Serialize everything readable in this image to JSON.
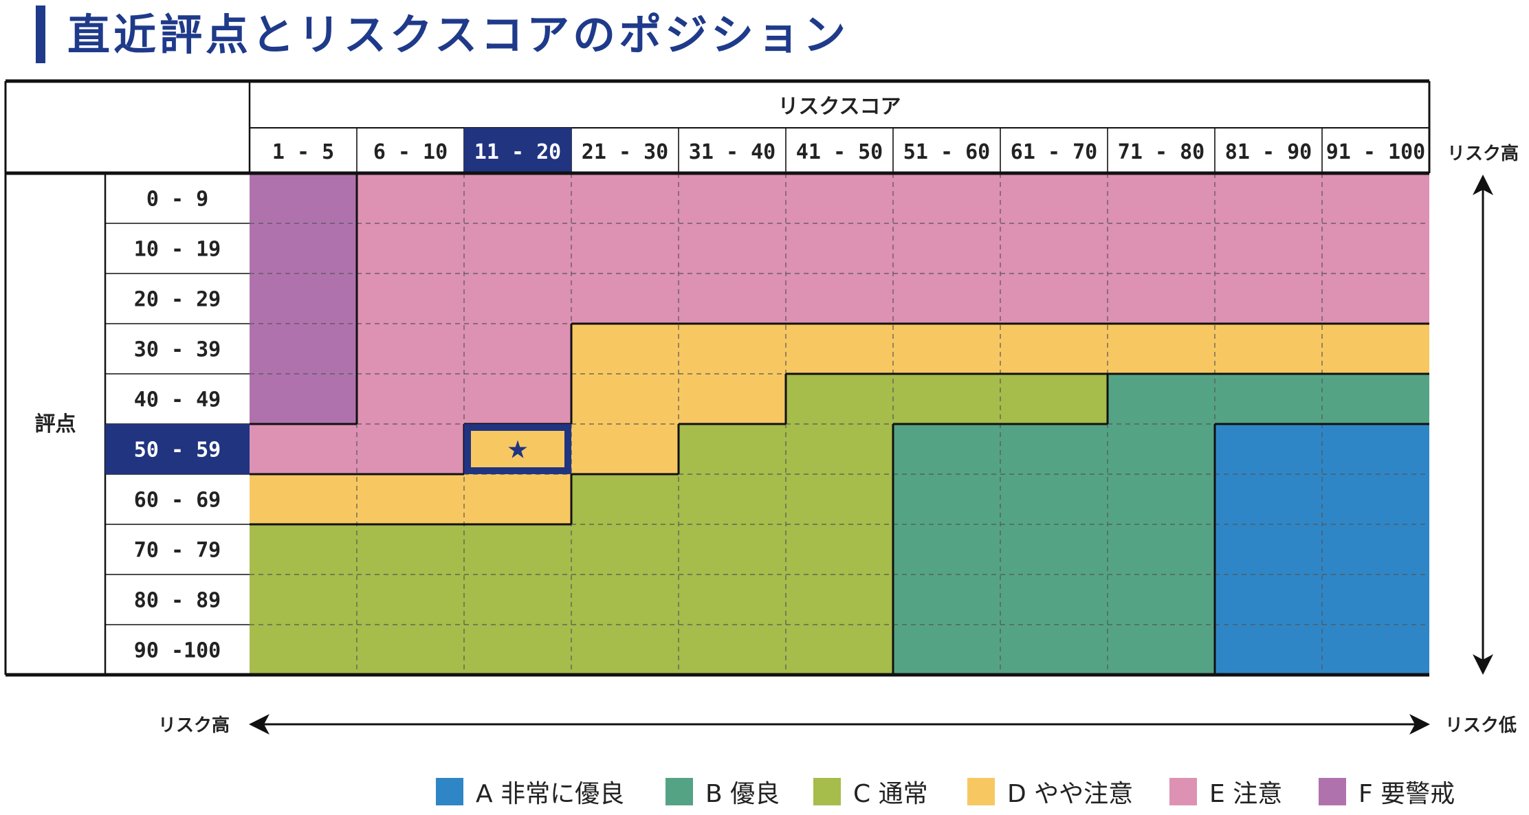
{
  "page": {
    "title": "直近評点とリスクスコアのポジション"
  },
  "matrix": {
    "corner_label": "",
    "column_group_label": "リスクスコア",
    "row_group_label": "評点",
    "columns": [
      "1 - 5",
      "6 - 10",
      "11 - 20",
      "21 - 30",
      "31 - 40",
      "41 - 50",
      "51 - 60",
      "61 - 70",
      "71 - 80",
      "81 - 90",
      "91 - 100"
    ],
    "rows": [
      "0 -  9",
      "10 - 19",
      "20 - 29",
      "30 - 39",
      "40 - 49",
      "50 - 59",
      "60 - 69",
      "70 - 79",
      "80 - 89",
      "90 -100"
    ],
    "selected_column": 2,
    "selected_row": 5,
    "marker_symbol": "★",
    "cells": [
      [
        "F",
        "E",
        "E",
        "E",
        "E",
        "E",
        "E",
        "E",
        "E",
        "E",
        "E"
      ],
      [
        "F",
        "E",
        "E",
        "E",
        "E",
        "E",
        "E",
        "E",
        "E",
        "E",
        "E"
      ],
      [
        "F",
        "E",
        "E",
        "E",
        "E",
        "E",
        "E",
        "E",
        "E",
        "E",
        "E"
      ],
      [
        "F",
        "E",
        "E",
        "D",
        "D",
        "D",
        "D",
        "D",
        "D",
        "D",
        "D"
      ],
      [
        "F",
        "E",
        "E",
        "D",
        "D",
        "C",
        "C",
        "C",
        "B",
        "B",
        "B"
      ],
      [
        "E",
        "E",
        "D",
        "D",
        "C",
        "C",
        "B",
        "B",
        "B",
        "A",
        "A"
      ],
      [
        "D",
        "D",
        "D",
        "C",
        "C",
        "C",
        "B",
        "B",
        "B",
        "A",
        "A"
      ],
      [
        "C",
        "C",
        "C",
        "C",
        "C",
        "C",
        "B",
        "B",
        "B",
        "A",
        "A"
      ],
      [
        "C",
        "C",
        "C",
        "C",
        "C",
        "C",
        "B",
        "B",
        "B",
        "A",
        "A"
      ],
      [
        "C",
        "C",
        "C",
        "C",
        "C",
        "C",
        "B",
        "B",
        "B",
        "A",
        "A"
      ]
    ]
  },
  "axis": {
    "right_top_label": "リスク高",
    "bottom_left_label": "リスク高",
    "bottom_right_label": "リスク低"
  },
  "legend": [
    {
      "code": "A",
      "label": "A 非常に優良",
      "color": "#2f86c6"
    },
    {
      "code": "B",
      "label": "B 優良",
      "color": "#55a385"
    },
    {
      "code": "C",
      "label": "C 通常",
      "color": "#a6bc4b"
    },
    {
      "code": "D",
      "label": "D やや注意",
      "color": "#f7c862"
    },
    {
      "code": "E",
      "label": "E 注意",
      "color": "#dd91b3"
    },
    {
      "code": "F",
      "label": "F 要警戒",
      "color": "#b072ad"
    }
  ],
  "colors": {
    "accent": "#1f3a8a",
    "highlight": "#203480",
    "grid_border": "#111111"
  }
}
